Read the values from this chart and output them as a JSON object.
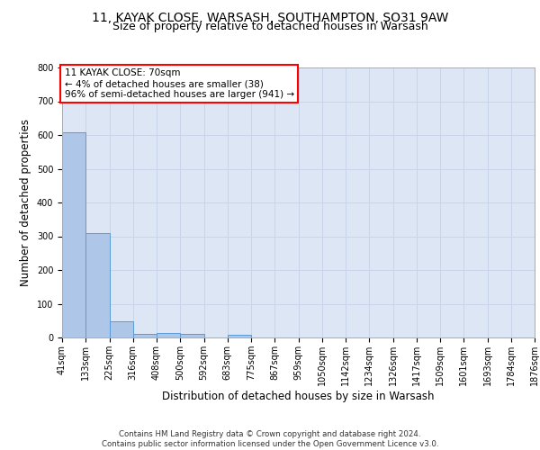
{
  "title1": "11, KAYAK CLOSE, WARSASH, SOUTHAMPTON, SO31 9AW",
  "title2": "Size of property relative to detached houses in Warsash",
  "xlabel": "Distribution of detached houses by size in Warsash",
  "ylabel": "Number of detached properties",
  "bin_edges": [
    41,
    133,
    225,
    316,
    408,
    500,
    592,
    683,
    775,
    867,
    959,
    1050,
    1142,
    1234,
    1326,
    1417,
    1509,
    1601,
    1693,
    1784,
    1876
  ],
  "bar_heights": [
    607,
    310,
    48,
    10,
    13,
    12,
    0,
    8,
    0,
    0,
    0,
    0,
    0,
    0,
    0,
    0,
    0,
    0,
    0,
    0
  ],
  "bar_color": "#aec6e8",
  "bar_edge_color": "#5b9bd5",
  "grid_color": "#c8d4e8",
  "background_color": "#dce6f5",
  "annotation_text": "11 KAYAK CLOSE: 70sqm\n← 4% of detached houses are smaller (38)\n96% of semi-detached houses are larger (941) →",
  "annotation_box_color": "white",
  "annotation_box_edge_color": "red",
  "ylim": [
    0,
    800
  ],
  "yticks": [
    0,
    100,
    200,
    300,
    400,
    500,
    600,
    700,
    800
  ],
  "footer_text": "Contains HM Land Registry data © Crown copyright and database right 2024.\nContains public sector information licensed under the Open Government Licence v3.0.",
  "title_fontsize": 10,
  "subtitle_fontsize": 9,
  "tick_fontsize": 7,
  "label_fontsize": 8.5,
  "annotation_fontsize": 7.5
}
